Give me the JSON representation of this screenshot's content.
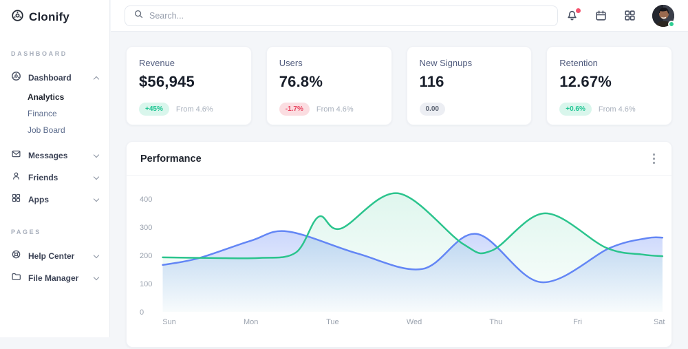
{
  "brand": {
    "name": "Clonify"
  },
  "colors": {
    "accent_green": "#1ec592",
    "badge_green_bg": "#d9f6ec",
    "accent_red": "#e8405c",
    "badge_red_bg": "#fbdde1",
    "badge_neutral_text": "#5a6270",
    "badge_neutral_bg": "#eceef3",
    "chart_green": "#2bc48d",
    "chart_blue": "#6386f5",
    "online_dot": "#2fce93",
    "notification_dot": "#f4536e",
    "axis_label": "#9aa2ae"
  },
  "topbar": {
    "search_placeholder": "Search..."
  },
  "sidebar": {
    "sections": [
      {
        "label": "DASHBOARD",
        "items": [
          {
            "label": "Dashboard",
            "icon": "dashboard-icon",
            "expanded": true,
            "children": [
              {
                "label": "Analytics",
                "active": true
              },
              {
                "label": "Finance",
                "active": false
              },
              {
                "label": "Job Board",
                "active": false
              }
            ]
          },
          {
            "label": "Messages",
            "icon": "messages-icon"
          },
          {
            "label": "Friends",
            "icon": "friends-icon"
          },
          {
            "label": "Apps",
            "icon": "apps-icon"
          }
        ]
      },
      {
        "label": "PAGES",
        "items": [
          {
            "label": "Help Center",
            "icon": "help-center-icon"
          },
          {
            "label": "File Manager",
            "icon": "file-manager-icon"
          }
        ]
      }
    ]
  },
  "stats": [
    {
      "title": "Revenue",
      "value": "$56,945",
      "badge": "+45%",
      "badge_type": "success",
      "caption": "From 4.6%"
    },
    {
      "title": "Users",
      "value": "76.8%",
      "badge": "-1.7%",
      "badge_type": "danger",
      "caption": "From 4.6%"
    },
    {
      "title": "New Signups",
      "value": "116",
      "badge": "0.00",
      "badge_type": "neutral",
      "caption": ""
    },
    {
      "title": "Retention",
      "value": "12.67%",
      "badge": "+0.6%",
      "badge_type": "success",
      "caption": "From 4.6%"
    }
  ],
  "performance": {
    "title": "Performance"
  },
  "chart_data": {
    "type": "area",
    "title": "Performance",
    "categories": [
      "Sun",
      "Mon",
      "Tue",
      "Wed",
      "Thu",
      "Fri",
      "Sat"
    ],
    "y_ticks": [
      0,
      100,
      200,
      300,
      400
    ],
    "ylim": [
      0,
      430
    ],
    "grid": false,
    "legend": "none",
    "series": [
      {
        "name": "blue-series",
        "color": "#6386f5",
        "fill_opacity_top": 0.33,
        "points": [
          [
            -0.08,
            166
          ],
          [
            0.36,
            190
          ],
          [
            1.0,
            252
          ],
          [
            1.45,
            285
          ],
          [
            2.3,
            207
          ],
          [
            3.1,
            152
          ],
          [
            3.76,
            276
          ],
          [
            4.55,
            105
          ],
          [
            5.4,
            227
          ],
          [
            5.85,
            261
          ],
          [
            6.04,
            263
          ]
        ]
      },
      {
        "name": "green-series",
        "color": "#2bc48d",
        "fill_opacity_top": 0.15,
        "points": [
          [
            -0.08,
            193
          ],
          [
            0.5,
            191
          ],
          [
            1.1,
            191
          ],
          [
            1.55,
            210
          ],
          [
            1.83,
            337
          ],
          [
            2.1,
            295
          ],
          [
            2.8,
            420
          ],
          [
            3.6,
            240
          ],
          [
            3.95,
            217
          ],
          [
            4.6,
            349
          ],
          [
            5.35,
            227
          ],
          [
            5.8,
            203
          ],
          [
            6.04,
            197
          ]
        ]
      }
    ],
    "approx_daily_values": {
      "blue-series": [
        168,
        252,
        238,
        155,
        210,
        135,
        263
      ],
      "green-series": [
        193,
        191,
        305,
        415,
        225,
        270,
        197
      ]
    }
  }
}
